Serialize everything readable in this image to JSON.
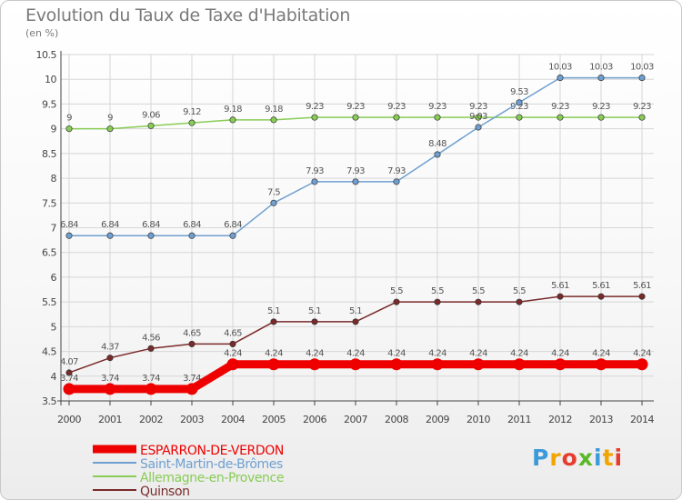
{
  "title": "Evolution du Taux de Taxe d'Habitation",
  "unit_label": "(en %)",
  "logo_text": "Proxiti",
  "chart_data": {
    "type": "line",
    "title": "Evolution du Taux de Taxe d'Habitation",
    "ylabel": "(en %)",
    "xlabel": "",
    "ylim": [
      3.5,
      10.5
    ],
    "yticks": [
      "3.5",
      "4",
      "4.5",
      "5",
      "5.5",
      "6",
      "6.5",
      "7",
      "7.5",
      "8",
      "8.5",
      "9",
      "9.5",
      "10",
      "10.5"
    ],
    "x": [
      "2000",
      "2001",
      "2002",
      "2003",
      "2004",
      "2005",
      "2006",
      "2007",
      "2008",
      "2009",
      "2010",
      "2011",
      "2012",
      "2013",
      "2014"
    ],
    "grid": true,
    "legend_position": "bottom-left",
    "series": [
      {
        "name": "Allemagne-en-Provence",
        "color": "#88cc55",
        "values": [
          9,
          9,
          9.06,
          9.12,
          9.18,
          9.18,
          9.23,
          9.23,
          9.23,
          9.23,
          9.23,
          9.23,
          9.23,
          9.23,
          9.23
        ],
        "labels": [
          "9",
          "9",
          "9.06",
          "9.12",
          "9.18",
          "9.18",
          "9.23",
          "9.23",
          "9.23",
          "9.23",
          "9.23",
          "9.23",
          "9.23",
          "9.23",
          "9.23"
        ]
      },
      {
        "name": "Saint-Martin-de-Brômes",
        "color": "#6f9fd0",
        "values": [
          6.84,
          6.84,
          6.84,
          6.84,
          6.84,
          7.5,
          7.93,
          7.93,
          7.93,
          8.48,
          9.03,
          9.53,
          10.03,
          10.03,
          10.03
        ],
        "labels": [
          "6.84",
          "6.84",
          "6.84",
          "6.84",
          "6.84",
          "7.5",
          "7.93",
          "7.93",
          "7.93",
          "8.48",
          "9.03",
          "9.53",
          "10.03",
          "10.03",
          "10.03"
        ]
      },
      {
        "name": "Quinson",
        "color": "#7a2a2a",
        "values": [
          4.07,
          4.37,
          4.56,
          4.65,
          4.65,
          5.1,
          5.1,
          5.1,
          5.5,
          5.5,
          5.5,
          5.5,
          5.61,
          5.61,
          5.61
        ],
        "labels": [
          "4.07",
          "4.37",
          "4.56",
          "4.65",
          "4.65",
          "5.1",
          "5.1",
          "5.1",
          "5.5",
          "5.5",
          "5.5",
          "5.5",
          "5.61",
          "5.61",
          "5.61"
        ]
      },
      {
        "name": "ESPARRON-DE-VERDON",
        "color": "#ee0000",
        "values": [
          3.74,
          3.74,
          3.74,
          3.74,
          4.24,
          4.24,
          4.24,
          4.24,
          4.24,
          4.24,
          4.24,
          4.24,
          4.24,
          4.24,
          4.24
        ],
        "labels": [
          "3.74",
          "3.74",
          "3.74",
          "3.74",
          "4.24",
          "4.24",
          "4.24",
          "4.24",
          "4.24",
          "4.24",
          "4.24",
          "4.24",
          "4.24",
          "4.24",
          "4.24"
        ]
      }
    ],
    "legend_order": [
      "ESPARRON-DE-VERDON",
      "Saint-Martin-de-Brômes",
      "Allemagne-en-Provence",
      "Quinson"
    ]
  }
}
